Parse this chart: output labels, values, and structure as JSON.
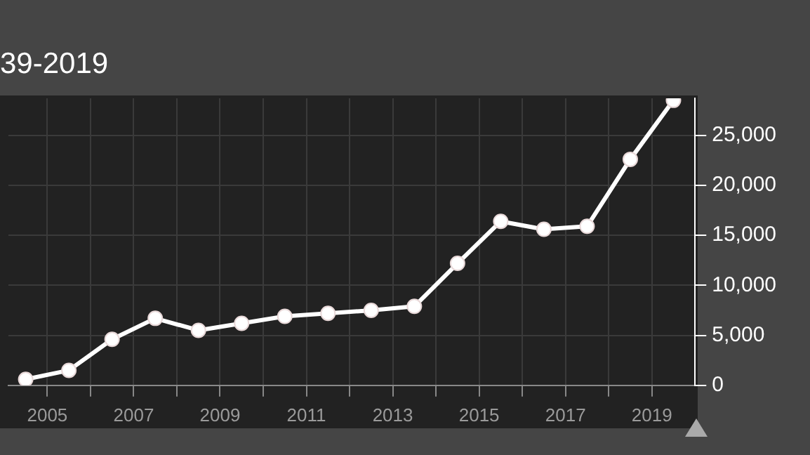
{
  "chart_data": {
    "type": "line",
    "title": "39-2019",
    "x": [
      2004.5,
      2005.5,
      2006.5,
      2007.5,
      2008.5,
      2009.5,
      2010.5,
      2011.5,
      2012.5,
      2013.5,
      2014.5,
      2015.5,
      2016.5,
      2017.5,
      2018.5,
      2019.5
    ],
    "series": [
      {
        "color": "#ffffff",
        "values": [
          600,
          1500,
          4600,
          6700,
          5500,
          6200,
          6900,
          7200,
          7500,
          7900,
          12200,
          16400,
          15600,
          15900,
          22600,
          28500
        ]
      }
    ],
    "xlim": [
      2004.1,
      2020
    ],
    "xticks": [
      {
        "value": 2005,
        "label": "2005"
      },
      {
        "value": 2006,
        "label": null
      },
      {
        "value": 2007,
        "label": "2007"
      },
      {
        "value": 2008,
        "label": null
      },
      {
        "value": 2009,
        "label": "2009"
      },
      {
        "value": 2010,
        "label": null
      },
      {
        "value": 2011,
        "label": "2011"
      },
      {
        "value": 2012,
        "label": null
      },
      {
        "value": 2013,
        "label": "2013"
      },
      {
        "value": 2014,
        "label": null
      },
      {
        "value": 2015,
        "label": "2015"
      },
      {
        "value": 2016,
        "label": null
      },
      {
        "value": 2017,
        "label": "2017"
      },
      {
        "value": 2018,
        "label": null
      },
      {
        "value": 2019,
        "label": "2019"
      }
    ],
    "ylim": [
      0,
      28700
    ],
    "yticks": [
      {
        "value": 0,
        "label": "0"
      },
      {
        "value": 5000,
        "label": "5,000"
      },
      {
        "value": 10000,
        "label": "10,000"
      },
      {
        "value": 15000,
        "label": "15,000"
      },
      {
        "value": 20000,
        "label": "20,000"
      },
      {
        "value": 25000,
        "label": "25,000"
      }
    ],
    "grid": true,
    "legend": false,
    "marker": "circle",
    "line_style": "solid"
  }
}
